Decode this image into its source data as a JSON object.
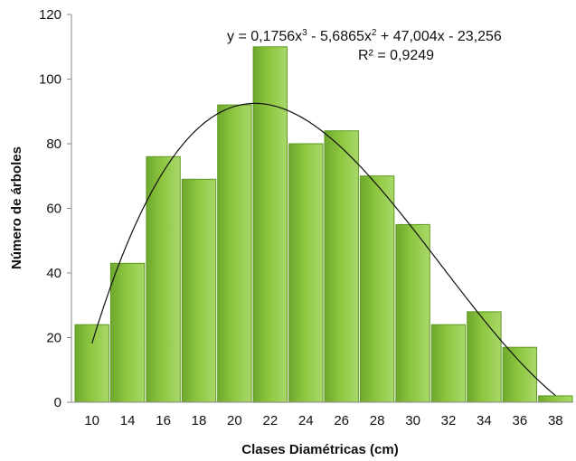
{
  "chart_data": {
    "type": "bar",
    "categories": [
      "10",
      "14",
      "16",
      "18",
      "20",
      "22",
      "24",
      "26",
      "28",
      "30",
      "32",
      "34",
      "36",
      "38"
    ],
    "values": [
      24,
      43,
      76,
      69,
      92,
      110,
      80,
      84,
      70,
      55,
      24,
      28,
      17,
      2
    ],
    "xlabel": "Clases Diamétricas (cm)",
    "ylabel": "Número de árboles",
    "ylim": [
      0,
      120
    ],
    "yticks": [
      "0",
      "20",
      "40",
      "60",
      "80",
      "100",
      "120"
    ],
    "grid": false,
    "bar_color": "#8dc63f",
    "trendline": {
      "type": "polynomial",
      "order": 3,
      "coefficients": [
        0.1756,
        -5.6865,
        47.004,
        -23.256
      ],
      "equation_parts": [
        "y = 0,1756x",
        "3",
        " - 5,6865x",
        "2",
        " + 47,004x - 23,256"
      ],
      "r2_label": "R² = 0,9249",
      "color": "#111111"
    }
  }
}
